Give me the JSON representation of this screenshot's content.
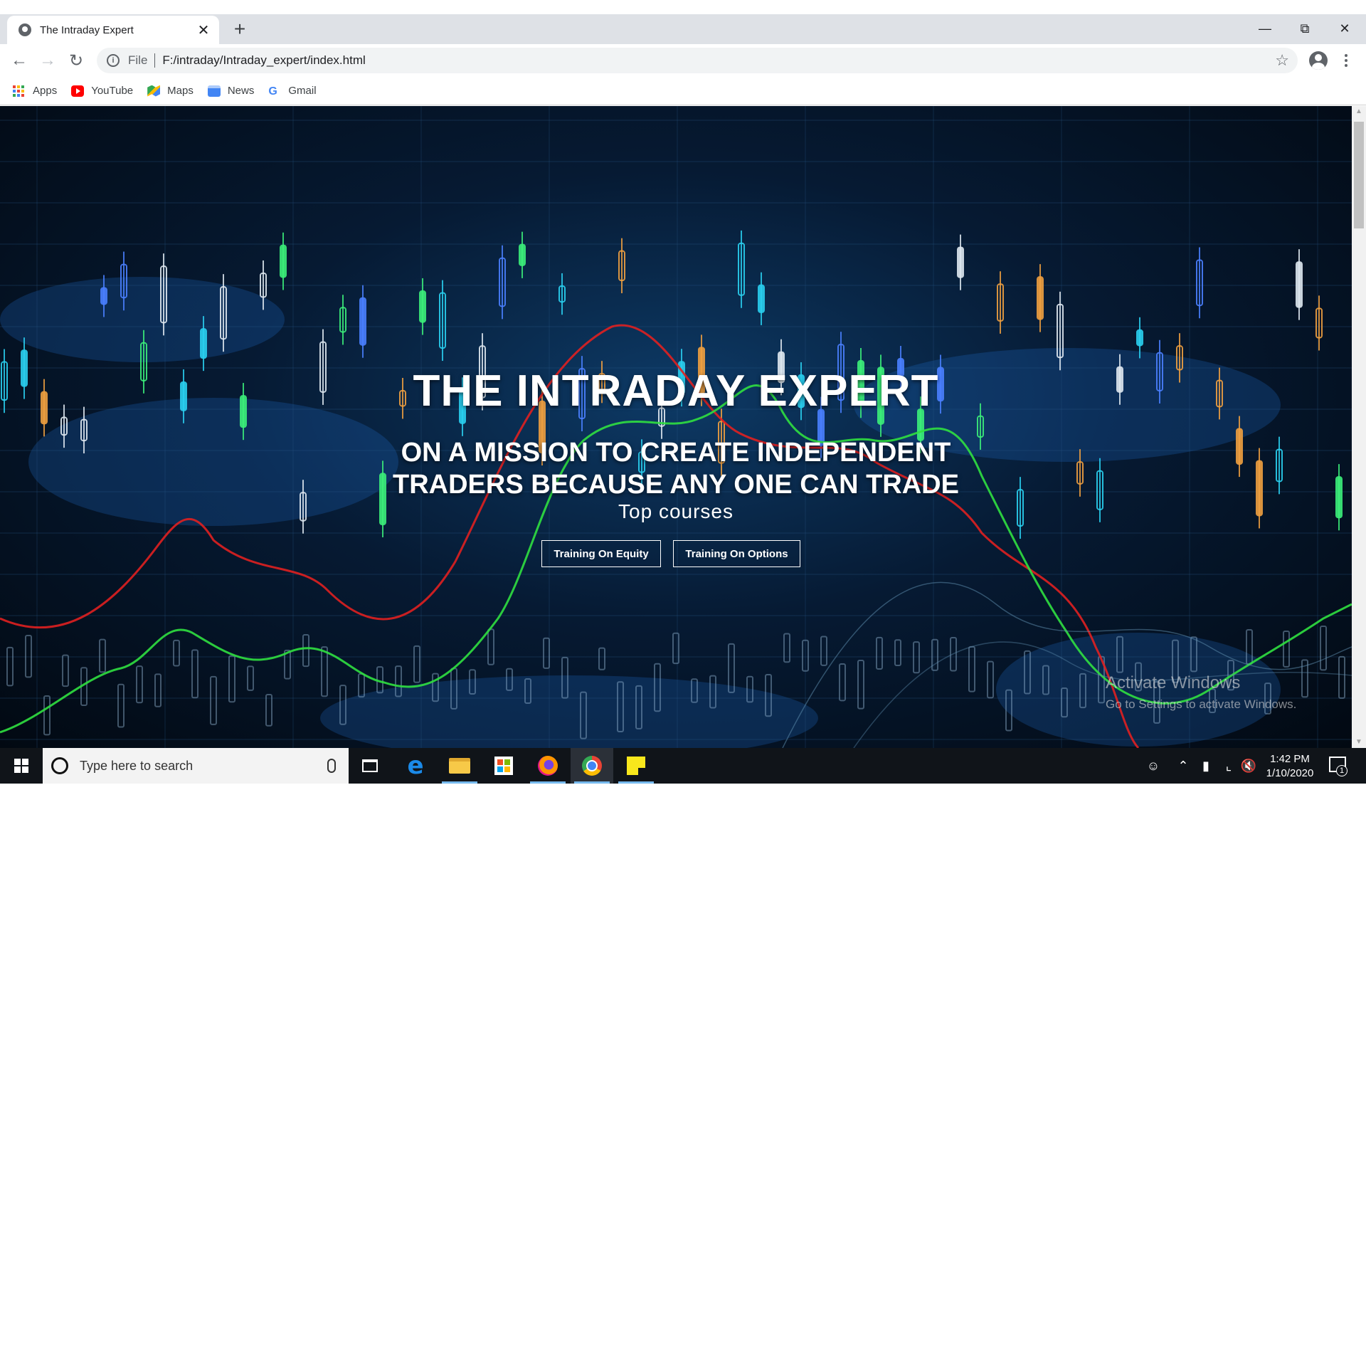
{
  "browser": {
    "tab_title": "The Intraday Expert",
    "new_tab_label": "+",
    "url_scheme": "File",
    "url": "F:/intraday/Intraday_expert/index.html",
    "bookmarks": [
      {
        "label": "Apps",
        "icon": "apps-grid-icon"
      },
      {
        "label": "YouTube",
        "icon": "youtube-icon"
      },
      {
        "label": "Maps",
        "icon": "maps-icon"
      },
      {
        "label": "News",
        "icon": "news-icon"
      },
      {
        "label": "Gmail",
        "icon": "google-icon"
      }
    ]
  },
  "hero": {
    "title": "THE INTRADAY EXPERT",
    "subtitle_line1": "ON A MISSION TO CREATE INDEPENDENT",
    "subtitle_line2": "TRADERS BECAUSE ANY ONE CAN TRADE",
    "courses_heading": "Top courses",
    "buttons": [
      {
        "label": "Training On Equity"
      },
      {
        "label": "Training On Options"
      }
    ]
  },
  "watermark": {
    "line1": "Activate Windows",
    "line2": "Go to Settings to activate Windows."
  },
  "taskbar": {
    "search_placeholder": "Type here to search",
    "time": "1:42 PM",
    "date": "1/10/2020",
    "notification_count": "1"
  },
  "colors": {
    "tabstrip": "#dee1e6",
    "hero_bg": "#061a33",
    "taskbar": "#101419",
    "candle_cyan": "#2ad0f0",
    "candle_green": "#3cf07a",
    "line_red": "#e02020",
    "line_green": "#30e040"
  }
}
